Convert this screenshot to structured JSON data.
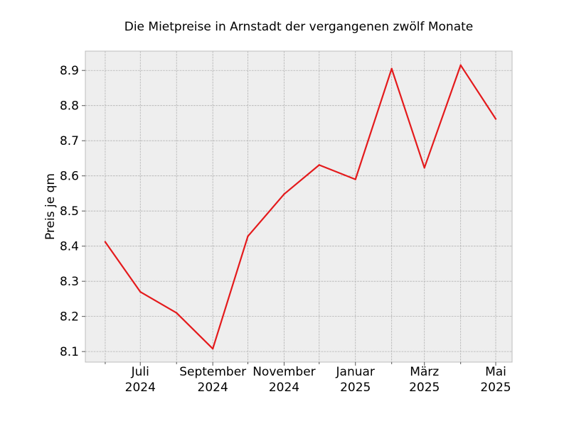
{
  "chart_data": {
    "type": "line",
    "title": "Die Mietpreise in Arnstadt der vergangenen zwölf Monate",
    "xlabel": "",
    "ylabel": "Preis je qm",
    "x": [
      "2024-06-01",
      "2024-07-01",
      "2024-08-01",
      "2024-09-01",
      "2024-10-01",
      "2024-11-01",
      "2024-12-01",
      "2025-01-01",
      "2025-02-01",
      "2025-03-01",
      "2025-04-01",
      "2025-05-01"
    ],
    "x_range": [
      "2024-05-15",
      "2025-05-15"
    ],
    "ylim": [
      8.07,
      8.955
    ],
    "series": [
      {
        "values": [
          8.412,
          8.27,
          8.21,
          8.108,
          8.428,
          8.548,
          8.631,
          8.59,
          8.905,
          8.623,
          8.915,
          8.762
        ]
      }
    ],
    "yticks": [
      8.1,
      8.2,
      8.3,
      8.4,
      8.5,
      8.6,
      8.7,
      8.8,
      8.9
    ],
    "ytick_labels": [
      "8.1",
      "8.2",
      "8.3",
      "8.4",
      "8.5",
      "8.6",
      "8.7",
      "8.8",
      "8.9"
    ],
    "xticks_major": [
      "2024-07-01",
      "2024-09-01",
      "2024-11-01",
      "2025-01-01",
      "2025-03-01",
      "2025-05-01"
    ],
    "xtick_labels": [
      [
        "Juli",
        "2024"
      ],
      [
        "September",
        "2024"
      ],
      [
        "November",
        "2024"
      ],
      [
        "Januar",
        "2025"
      ],
      [
        "März",
        "2025"
      ],
      [
        "Mai",
        "2025"
      ]
    ],
    "xticks_minor": [
      "2024-06-01",
      "2024-08-01",
      "2024-10-01",
      "2024-12-01",
      "2025-02-01",
      "2025-04-01"
    ],
    "grid": true,
    "colors": {
      "line": "#e41a1c",
      "plot_background": "#eeeeee",
      "grid": "#b2b2b2",
      "spine": "#bcbcbc"
    }
  }
}
